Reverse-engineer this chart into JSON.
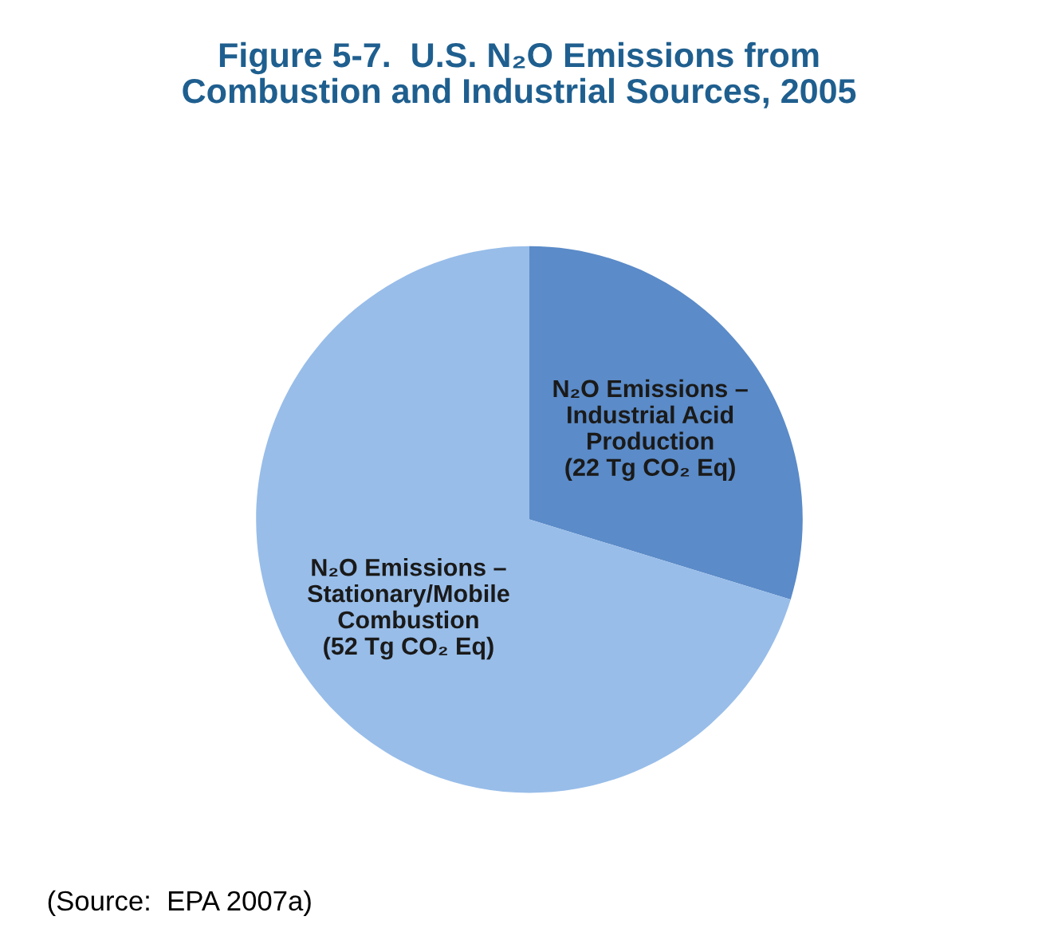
{
  "chart_data": {
    "type": "pie",
    "title": "Figure 5-7.  U.S. N₂O Emissions from\nCombustion and Industrial Sources, 2005",
    "categories": [
      "N₂O Emissions –\nIndustrial Acid\nProduction",
      "N₂O Emissions –\nStationary/Mobile\nCombustion"
    ],
    "values": [
      22,
      52
    ],
    "value_labels": [
      "(22 Tg CO₂ Eq)",
      "(52 Tg CO₂ Eq)"
    ],
    "colors": [
      "#5b8bc8",
      "#98bde9"
    ],
    "legend": false,
    "annotations": [
      "(Source:  EPA 2007a)"
    ]
  }
}
